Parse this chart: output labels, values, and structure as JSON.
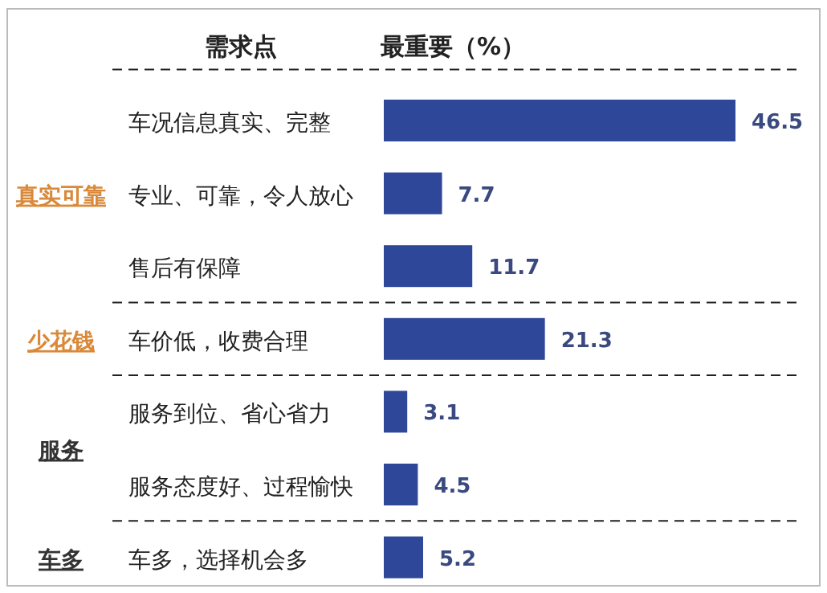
{
  "chart_data": {
    "type": "bar",
    "orientation": "horizontal",
    "title": "最重要（%）",
    "ylabel": "需求点",
    "categories": [
      "车况信息真实、完整",
      "专业、可靠，令人放心",
      "售后有保障",
      "车价低，收费合理",
      "服务到位、省心省力",
      "服务态度好、过程愉快",
      "车多，选择机会多"
    ],
    "values": [
      46.5,
      7.7,
      11.7,
      21.3,
      3.1,
      4.5,
      5.2
    ],
    "color": "#2e4799",
    "data_labels": true,
    "annotations": [
      "真实可靠",
      "少花钱",
      "服务",
      "车多"
    ]
  }
}
